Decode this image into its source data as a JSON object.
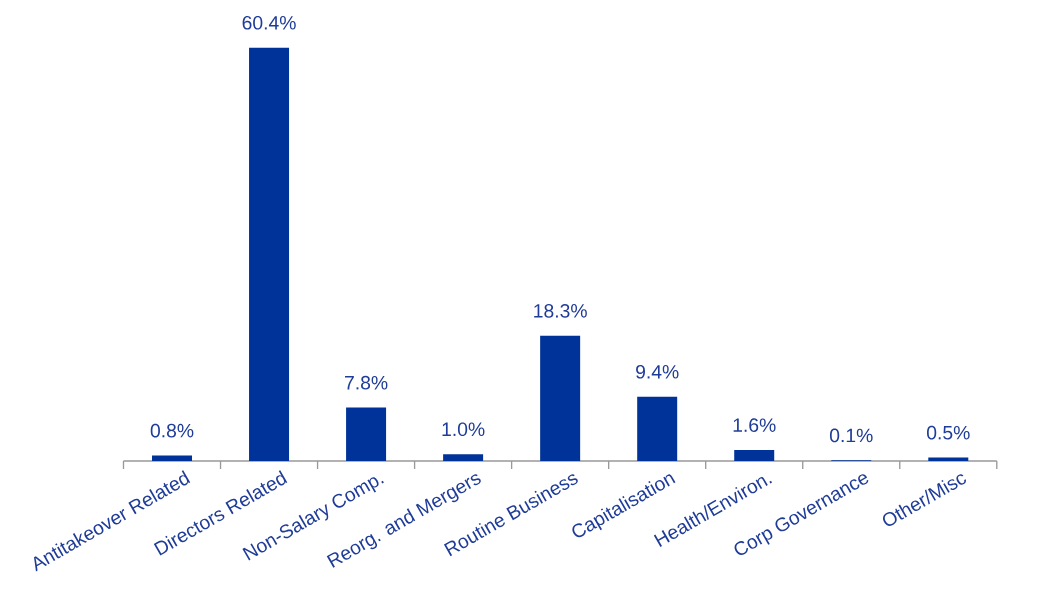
{
  "chart_data": {
    "type": "bar",
    "categories": [
      "Antitakeover Related",
      "Directors Related",
      "Non-Salary Comp.",
      "Reorg. and Mergers",
      "Routine Business",
      "Capitalisation",
      "Health/Environ.",
      "Corp Governance",
      "Other/Misc"
    ],
    "values": [
      0.8,
      60.4,
      7.8,
      1.0,
      18.3,
      9.4,
      1.6,
      0.1,
      0.5
    ],
    "value_labels": [
      "0.8%",
      "60.4%",
      "7.8%",
      "1.0%",
      "18.3%",
      "9.4%",
      "1.6%",
      "0.1%",
      "0.5%"
    ],
    "color": "#003399"
  }
}
